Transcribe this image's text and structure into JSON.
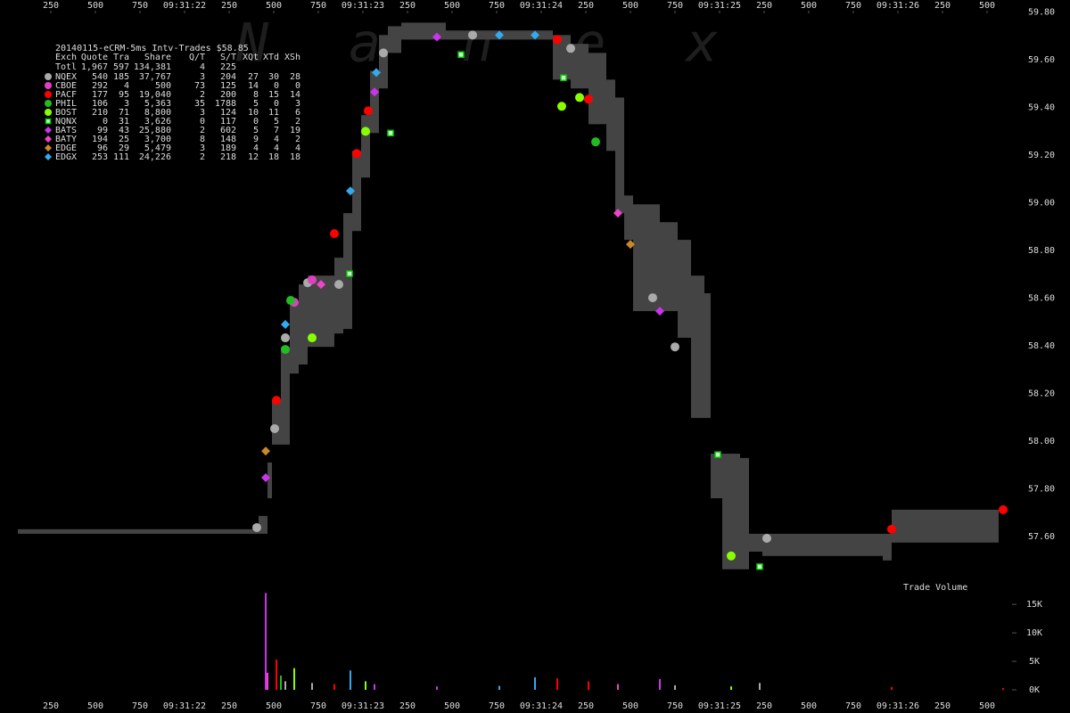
{
  "chart_data": [
    {
      "type": "scatter",
      "title": "20140115-eCRM-5ms Intv-Trades $58.85",
      "watermark": "Nanex",
      "xlim": [
        -35,
        5965
      ],
      "xticks": [
        {
          "value": 250,
          "label": "250"
        },
        {
          "value": 500,
          "label": "500"
        },
        {
          "value": 750,
          "label": "750"
        },
        {
          "value": 1000,
          "label": "09:31:22"
        },
        {
          "value": 1250,
          "label": "250"
        },
        {
          "value": 1500,
          "label": "500"
        },
        {
          "value": 1750,
          "label": "750"
        },
        {
          "value": 2000,
          "label": "09:31:23"
        },
        {
          "value": 2250,
          "label": "250"
        },
        {
          "value": 2500,
          "label": "500"
        },
        {
          "value": 2750,
          "label": "750"
        },
        {
          "value": 3000,
          "label": "09:31:24"
        },
        {
          "value": 3250,
          "label": "250"
        },
        {
          "value": 3500,
          "label": "500"
        },
        {
          "value": 3750,
          "label": "750"
        },
        {
          "value": 4000,
          "label": "09:31:25"
        },
        {
          "value": 4250,
          "label": "250"
        },
        {
          "value": 4500,
          "label": "500"
        },
        {
          "value": 4750,
          "label": "750"
        },
        {
          "value": 5000,
          "label": "09:31:26"
        },
        {
          "value": 5250,
          "label": "250"
        },
        {
          "value": 5500,
          "label": "500"
        }
      ],
      "ylim": [
        57.42,
        59.85
      ],
      "yticks": [
        {
          "value": 57.6,
          "label": "57.60"
        },
        {
          "value": 57.8,
          "label": "57.80"
        },
        {
          "value": 58.0,
          "label": "58.00"
        },
        {
          "value": 58.2,
          "label": "58.20"
        },
        {
          "value": 58.4,
          "label": "58.40"
        },
        {
          "value": 58.6,
          "label": "58.60"
        },
        {
          "value": 58.8,
          "label": "58.80"
        },
        {
          "value": 59.0,
          "label": "59.00"
        },
        {
          "value": 59.2,
          "label": "59.20"
        },
        {
          "value": 59.4,
          "label": "59.40"
        },
        {
          "value": 59.6,
          "label": "59.60"
        },
        {
          "value": 59.8,
          "label": "59.80"
        }
      ],
      "grid": false,
      "band": {
        "color": "#444444",
        "x": [
          65,
          1415,
          1465,
          1490,
          1540,
          1590,
          1640,
          1690,
          1765,
          1840,
          1890,
          1940,
          1990,
          2040,
          2090,
          2140,
          2215,
          2465,
          3015,
          3065,
          3165,
          3265,
          3365,
          3415,
          3465,
          3515,
          3665,
          3765,
          3840,
          3915,
          3950,
          4015,
          4115,
          4165,
          4240,
          4915,
          4965,
          5565
        ],
        "low": [
          57.611,
          57.611,
          57.76,
          57.985,
          57.985,
          58.283,
          58.321,
          58.395,
          58.395,
          58.451,
          58.47,
          58.881,
          59.105,
          59.292,
          59.479,
          59.628,
          59.684,
          59.684,
          59.684,
          59.516,
          59.479,
          59.329,
          59.217,
          58.956,
          58.844,
          58.545,
          58.545,
          58.433,
          58.097,
          58.097,
          57.76,
          57.462,
          57.462,
          57.536,
          57.518,
          57.499,
          57.574,
          57.574
        ],
        "high": [
          57.63,
          57.686,
          57.91,
          58.171,
          58.395,
          58.582,
          58.657,
          58.694,
          58.694,
          58.769,
          58.956,
          59.217,
          59.367,
          59.553,
          59.703,
          59.74,
          59.755,
          59.722,
          59.722,
          59.703,
          59.666,
          59.628,
          59.516,
          59.441,
          59.03,
          58.993,
          58.918,
          58.844,
          58.694,
          58.62,
          57.947,
          57.947,
          57.929,
          57.611,
          57.611,
          57.611,
          57.712,
          57.712
        ]
      },
      "header": [
        "Exch",
        "Quote",
        "Tra",
        "Share",
        "Q/T",
        "S/T",
        "XQt",
        "XTd",
        "XSh"
      ],
      "total": {
        "name": "Totl",
        "stats": [
          "1,967",
          "597",
          "134,381",
          "4",
          "225"
        ]
      },
      "series": [
        {
          "name": "NQEX",
          "color": "#aaaaaa",
          "marker": "circle",
          "stats": [
            "540",
            "185",
            "37,767",
            "3",
            "204",
            "27",
            "30",
            "28"
          ],
          "x": [
            1405,
            1505,
            1565,
            1690,
            1865,
            2115,
            2615,
            3165,
            3625,
            3750,
            4265
          ],
          "values": [
            57.637,
            58.052,
            58.433,
            58.664,
            58.657,
            59.628,
            59.703,
            59.647,
            58.601,
            58.395,
            57.592
          ]
        },
        {
          "name": "CBOE",
          "color": "#e040c0",
          "marker": "circle",
          "stats": [
            "292",
            "4",
            "500",
            "73",
            "125",
            "14",
            "0",
            "0"
          ],
          "x": [
            1615,
            1715
          ],
          "values": [
            58.582,
            58.676
          ]
        },
        {
          "name": "PACF",
          "color": "#ff0000",
          "marker": "circle",
          "stats": [
            "177",
            "95",
            "19,040",
            "2",
            "200",
            "8",
            "15",
            "14"
          ],
          "x": [
            1515,
            1840,
            1965,
            2030,
            3090,
            3265,
            4965,
            5590
          ],
          "values": [
            58.171,
            58.87,
            59.206,
            59.385,
            59.684,
            59.434,
            57.63,
            57.712
          ]
        },
        {
          "name": "PHIL",
          "color": "#22bb22",
          "marker": "circle",
          "stats": [
            "106",
            "3",
            "5,363",
            "35",
            "1788",
            "5",
            "0",
            "3"
          ],
          "x": [
            1565,
            1595,
            3305
          ],
          "values": [
            58.384,
            58.59,
            59.255
          ]
        },
        {
          "name": "BOST",
          "color": "#88ff00",
          "marker": "circle",
          "stats": [
            "210",
            "71",
            "8,800",
            "3",
            "124",
            "10",
            "11",
            "6"
          ],
          "x": [
            1715,
            2015,
            3115,
            3215,
            4065
          ],
          "values": [
            58.433,
            59.299,
            59.404,
            59.441,
            57.518
          ]
        },
        {
          "name": "NQNX",
          "color": "#00cc00",
          "marker": "square",
          "stats": [
            "0",
            "31",
            "3,626",
            "0",
            "117",
            "0",
            "5",
            "2"
          ],
          "x": [
            1925,
            2155,
            2550,
            3125,
            3990,
            4225
          ],
          "values": [
            58.702,
            59.292,
            59.621,
            59.524,
            57.943,
            57.473
          ]
        },
        {
          "name": "BATS",
          "color": "#cc33ee",
          "marker": "diamond",
          "stats": [
            "99",
            "43",
            "25,880",
            "2",
            "602",
            "5",
            "7",
            "19"
          ],
          "x": [
            1455,
            2065,
            2415,
            3665
          ],
          "values": [
            57.846,
            59.464,
            59.695,
            58.545
          ]
        },
        {
          "name": "BATY",
          "color": "#ee44cc",
          "marker": "diamond",
          "stats": [
            "194",
            "25",
            "3,700",
            "8",
            "148",
            "9",
            "4",
            "2"
          ],
          "x": [
            1765,
            3430
          ],
          "values": [
            58.657,
            58.956
          ]
        },
        {
          "name": "EDGE",
          "color": "#cc8822",
          "marker": "diamond",
          "stats": [
            "96",
            "29",
            "5,479",
            "3",
            "189",
            "4",
            "4",
            "4"
          ],
          "x": [
            1455,
            3500
          ],
          "values": [
            57.958,
            58.825
          ]
        },
        {
          "name": "EDGX",
          "color": "#33aaee",
          "marker": "diamond",
          "stats": [
            "253",
            "111",
            "24,226",
            "2",
            "218",
            "12",
            "18",
            "18"
          ],
          "x": [
            1565,
            1930,
            2075,
            2765,
            2965
          ],
          "values": [
            58.489,
            59.049,
            59.546,
            59.703,
            59.703
          ]
        }
      ]
    },
    {
      "type": "bar",
      "title": "Trade Volume",
      "x": [
        1455,
        1465,
        1515,
        1540,
        1565,
        1615,
        1715,
        1840,
        1930,
        2015,
        2065,
        2415,
        2765,
        2965,
        3090,
        3265,
        3430,
        3665,
        3750,
        4065,
        4225,
        4965,
        5590
      ],
      "values": [
        17000,
        3000,
        5300,
        2500,
        1500,
        3800,
        1200,
        1000,
        3400,
        1500,
        1000,
        600,
        700,
        2200,
        2000,
        1500,
        1000,
        1900,
        800,
        600,
        1200,
        500,
        300
      ],
      "colors": [
        "#cc33ee",
        "#ee44cc",
        "#ff0000",
        "#22bb22",
        "#aaaaaa",
        "#88ff00",
        "#aaaaaa",
        "#ff0000",
        "#33aaee",
        "#88ff00",
        "#cc33ee",
        "#cc33ee",
        "#33aaee",
        "#33aaee",
        "#ff0000",
        "#ff0000",
        "#ee44cc",
        "#cc33ee",
        "#aaaaaa",
        "#88ff00",
        "#aaaaaa",
        "#ff0000",
        "#ff0000"
      ],
      "ylim": [
        0,
        18000
      ],
      "yticks": [
        {
          "value": 0,
          "label": "0K"
        },
        {
          "value": 5000,
          "label": "5K"
        },
        {
          "value": 10000,
          "label": "10K"
        },
        {
          "value": 15000,
          "label": "15K"
        }
      ]
    }
  ]
}
